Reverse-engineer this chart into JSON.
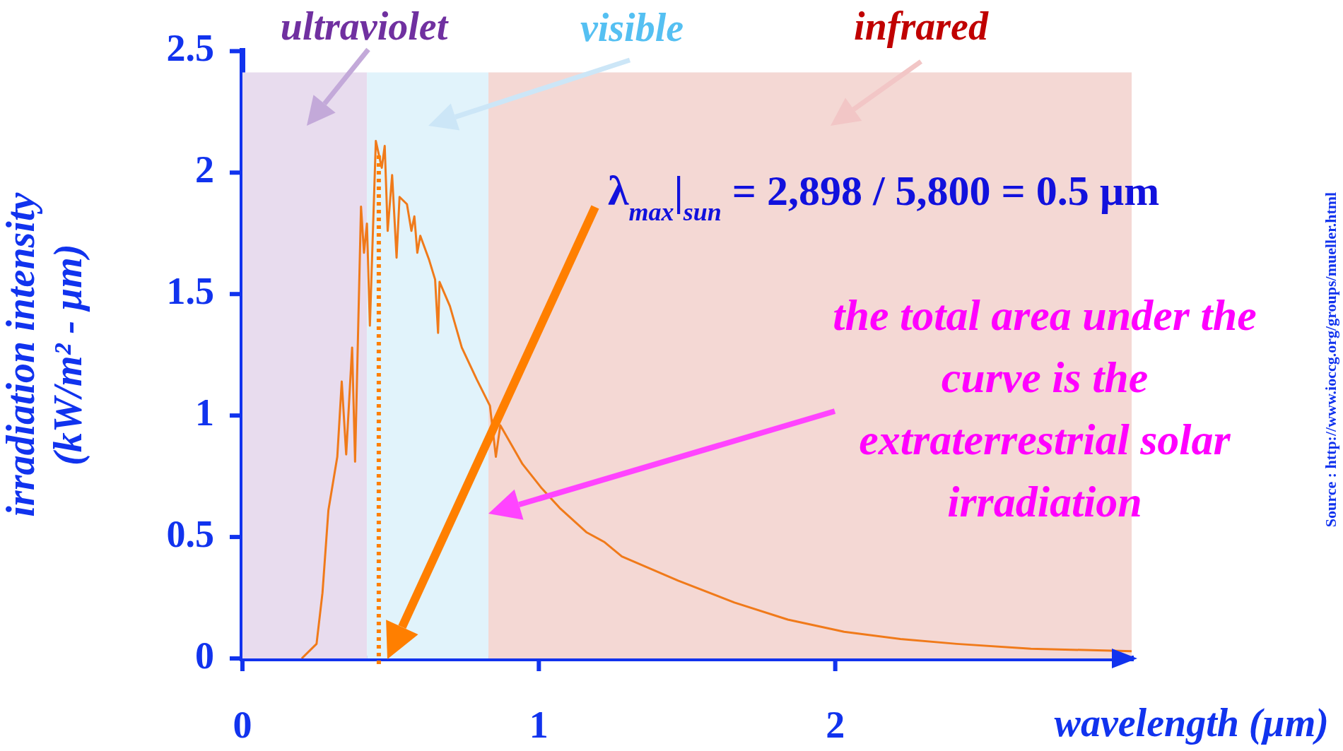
{
  "chart_data": {
    "type": "line",
    "xlabel": "wavelength (µm)",
    "ylabel": "irradiation intensity (kW/m² - µm)",
    "xlim": [
      0,
      3
    ],
    "xticks": [
      0,
      1,
      2
    ],
    "ylim": [
      0,
      2.5
    ],
    "yticks": [
      0,
      0.5,
      1,
      1.5,
      2,
      2.5
    ],
    "grid": false,
    "legend": false,
    "marker": "none",
    "line_style": "solid",
    "series": [
      {
        "color": "#f07a1a",
        "x": [
          0.2,
          0.25,
          0.27,
          0.29,
          0.32,
          0.335,
          0.35,
          0.37,
          0.38,
          0.4,
          0.41,
          0.42,
          0.43,
          0.45,
          0.47,
          0.48,
          0.49,
          0.505,
          0.52,
          0.53,
          0.555,
          0.57,
          0.58,
          0.59,
          0.6,
          0.63,
          0.65,
          0.66,
          0.665,
          0.7,
          0.74,
          0.79,
          0.835,
          0.855,
          0.87,
          0.945,
          1.01,
          1.07,
          1.16,
          1.22,
          1.28,
          1.47,
          1.66,
          1.84,
          2.03,
          2.22,
          2.41,
          2.66,
          3.0
        ],
        "values": [
          0,
          0.06,
          0.27,
          0.61,
          0.83,
          1.14,
          0.84,
          1.28,
          0.81,
          1.86,
          1.67,
          1.79,
          1.37,
          2.13,
          2.02,
          2.11,
          1.76,
          1.99,
          1.65,
          1.9,
          1.87,
          1.76,
          1.82,
          1.67,
          1.74,
          1.64,
          1.56,
          1.34,
          1.55,
          1.45,
          1.28,
          1.15,
          1.04,
          0.83,
          0.96,
          0.8,
          0.7,
          0.62,
          0.52,
          0.48,
          0.42,
          0.32,
          0.23,
          0.16,
          0.11,
          0.08,
          0.06,
          0.04,
          0.03
        ]
      }
    ],
    "bands": [
      {
        "axis": "x",
        "from": 0,
        "to": 0.42,
        "label": "ultraviolet",
        "color": "#e8dcee"
      },
      {
        "axis": "x",
        "from": 0.42,
        "to": 0.83,
        "label": "visible",
        "color": "#e1f3fb"
      },
      {
        "axis": "x",
        "from": 0.83,
        "to": 3,
        "label": "infrared",
        "color": "#f4d8d4"
      }
    ],
    "ref_lines": [
      {
        "axis": "x",
        "value": 0.46,
        "color": "#ff7f00",
        "line_style": "dotted"
      }
    ],
    "annotations": [
      "λ$_{max}$|$_{sun}$ = 2,898 / 5,800 = 0.5 µm",
      "the total area under the curve is the extraterrestrial solar irradiation",
      "Source : http://www.ioccg.org/groups/mueller.html"
    ]
  }
}
